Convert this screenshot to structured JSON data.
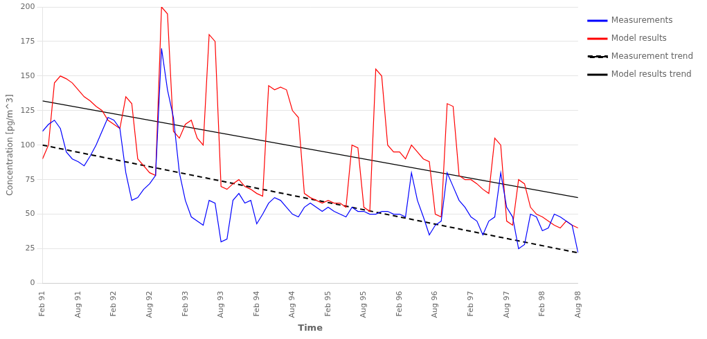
{
  "chart_data": {
    "type": "line",
    "xlabel": "Time",
    "ylabel": "Concentration [pg/m^3]",
    "categories": [
      "Feb 91",
      null,
      null,
      null,
      null,
      null,
      "Aug 91",
      null,
      null,
      null,
      null,
      null,
      "Feb 92",
      null,
      null,
      null,
      null,
      null,
      "Aug 92",
      null,
      null,
      null,
      null,
      null,
      "Feb 93",
      null,
      null,
      null,
      null,
      null,
      "Aug 93",
      null,
      null,
      null,
      null,
      null,
      "Feb 94",
      null,
      null,
      null,
      null,
      null,
      "Aug 94",
      null,
      null,
      null,
      null,
      null,
      "Feb 95",
      null,
      null,
      null,
      null,
      null,
      "Aug 95",
      null,
      null,
      null,
      null,
      null,
      "Feb 96",
      null,
      null,
      null,
      null,
      null,
      "Aug 96",
      null,
      null,
      null,
      null,
      null,
      "Feb 97",
      null,
      null,
      null,
      null,
      null,
      "Aug 97",
      null,
      null,
      null,
      null,
      null,
      "Feb 98",
      null,
      null,
      null,
      null,
      null,
      "Aug 98"
    ],
    "series": [
      {
        "name": "Measurements",
        "color": "#0000FF",
        "line_style": "solid",
        "values": [
          110,
          115,
          118,
          112,
          95,
          90,
          88,
          85,
          92,
          100,
          110,
          120,
          118,
          112,
          80,
          60,
          62,
          68,
          72,
          78,
          170,
          140,
          120,
          80,
          60,
          48,
          45,
          42,
          60,
          58,
          30,
          32,
          60,
          65,
          58,
          60,
          43,
          50,
          58,
          62,
          60,
          55,
          50,
          48,
          55,
          58,
          55,
          52,
          55,
          52,
          50,
          48,
          55,
          52,
          52,
          50,
          50,
          52,
          52,
          50,
          50,
          48,
          80,
          60,
          48,
          35,
          42,
          45,
          80,
          70,
          60,
          55,
          48,
          45,
          35,
          45,
          48,
          80,
          55,
          48,
          25,
          28,
          50,
          48,
          38,
          40,
          50,
          48,
          45,
          42,
          22
        ]
      },
      {
        "name": "Model results",
        "color": "#FF0000",
        "line_style": "solid",
        "values": [
          90,
          100,
          145,
          150,
          148,
          145,
          140,
          135,
          132,
          128,
          125,
          118,
          115,
          112,
          135,
          130,
          90,
          85,
          80,
          78,
          200,
          195,
          110,
          105,
          115,
          118,
          105,
          100,
          180,
          175,
          70,
          68,
          72,
          75,
          70,
          68,
          65,
          63,
          143,
          140,
          142,
          140,
          125,
          120,
          65,
          62,
          60,
          58,
          60,
          58,
          58,
          55,
          100,
          98,
          55,
          52,
          155,
          150,
          100,
          95,
          95,
          90,
          100,
          95,
          90,
          88,
          50,
          48,
          130,
          128,
          78,
          75,
          75,
          72,
          68,
          65,
          105,
          100,
          45,
          42,
          75,
          72,
          55,
          50,
          48,
          45,
          42,
          40,
          45,
          42,
          40
        ]
      },
      {
        "name": "Measurement trend",
        "color": "#000000",
        "line_style": "dashed",
        "x": [
          "Feb 91",
          "Aug 98"
        ],
        "values": [
          100,
          22
        ]
      },
      {
        "name": "Model results trend",
        "color": "#000000",
        "line_style": "solid",
        "x": [
          "Feb 91",
          "Aug 98"
        ],
        "values": [
          132,
          62
        ]
      }
    ],
    "ylim": [
      0,
      200
    ],
    "yticks": [
      0,
      25,
      50,
      75,
      100,
      125,
      150,
      175,
      200
    ],
    "grid": "y",
    "legend": "right"
  }
}
